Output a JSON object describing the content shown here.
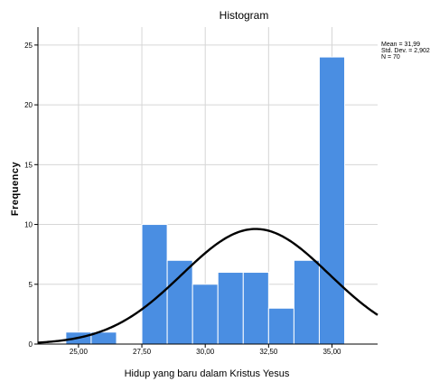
{
  "chart_data": {
    "type": "bar",
    "title": "Histogram",
    "xlabel": "Hidup yang baru dalam Kristus Yesus",
    "ylabel": "Frequency",
    "bin_width": 1,
    "bins": [
      {
        "center": 25.0,
        "count": 1
      },
      {
        "center": 26.0,
        "count": 1
      },
      {
        "center": 27.0,
        "count": 0
      },
      {
        "center": 28.0,
        "count": 10
      },
      {
        "center": 29.0,
        "count": 7
      },
      {
        "center": 30.0,
        "count": 5
      },
      {
        "center": 31.0,
        "count": 6
      },
      {
        "center": 32.0,
        "count": 6
      },
      {
        "center": 33.0,
        "count": 3
      },
      {
        "center": 34.0,
        "count": 7
      },
      {
        "center": 35.0,
        "count": 24
      }
    ],
    "xlim": [
      23.4,
      36.8
    ],
    "ylim": [
      0,
      26.5
    ],
    "x_ticks": [
      25,
      27.5,
      30,
      32.5,
      35
    ],
    "x_tick_labels": [
      "25,00",
      "27,50",
      "30,00",
      "32,50",
      "35,00"
    ],
    "y_ticks": [
      0,
      5,
      10,
      15,
      20,
      25
    ],
    "y_tick_labels": [
      "0",
      "5",
      "10",
      "15",
      "20",
      "25"
    ],
    "normal_curve": {
      "mean": 31.99,
      "sd": 2.902,
      "n": 70
    },
    "stats_lines": [
      "Mean = 31,99",
      "Std. Dev. = 2,902",
      "N = 70"
    ],
    "bar_color": "#4a8ee2",
    "curve_color": "#000000",
    "grid": true
  }
}
